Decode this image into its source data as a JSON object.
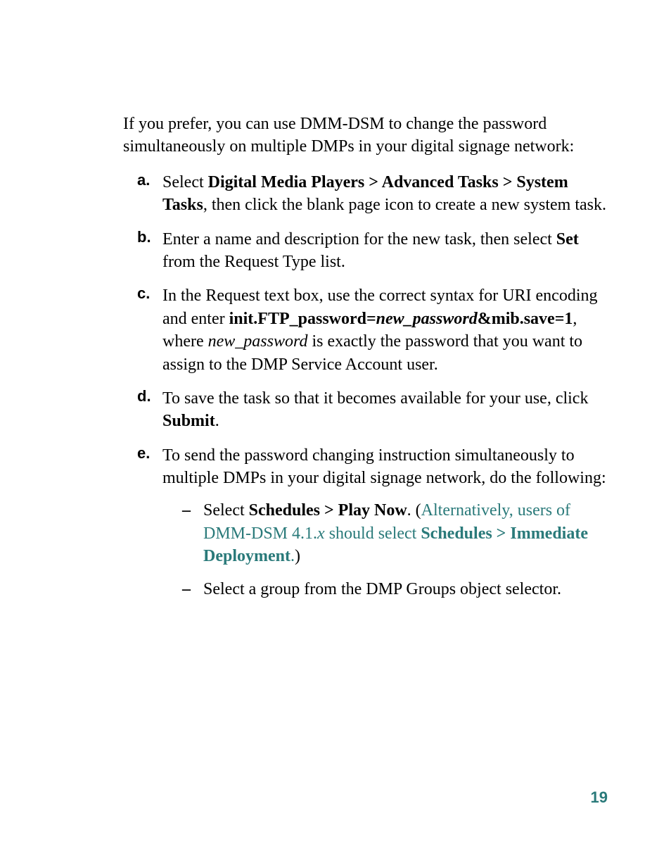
{
  "intro": "If you prefer, you can use DMM-DSM to change the password simultaneously on multiple DMPs in your digital signage network:",
  "items": {
    "a": {
      "marker": "a.",
      "pre": "Select ",
      "bold1": "Digital Media Players > Advanced Tasks > System Tasks",
      "post": ", then click the blank page icon to create a new system task."
    },
    "b": {
      "marker": "b.",
      "pre": "Enter a name and description for the new task, then select ",
      "bold1": "Set",
      "post": " from the Request Type list."
    },
    "c": {
      "marker": "c.",
      "line1": "In the Request text box, use the correct syntax for URI encoding and enter",
      "bold1": "init.FTP_password=",
      "italic1": "new_password",
      "bold2": "&mib.save=1",
      "post1": ", where ",
      "italic2": "new_password",
      "post2": " is exactly the password that you want to assign to the DMP Service Account user."
    },
    "d": {
      "marker": "d.",
      "pre": "To save the task so that it becomes available for your use, click ",
      "bold1": "Submit",
      "post": "."
    },
    "e": {
      "marker": "e.",
      "text": "To send the password changing instruction simultaneously to multiple DMPs in your digital signage network, do the following:",
      "sub1": {
        "marker": "–",
        "pre": "Select ",
        "bold1": "Schedules > Play Now",
        "post1": ". (",
        "teal1": "Alternatively, users of DMM-DSM 4.1.",
        "tealitalic": "x",
        "teal2": " should select ",
        "tealbold": "Schedules > Immediate Deployment",
        "teal3": ".",
        "close": ")"
      },
      "sub2": {
        "marker": "–",
        "text": "Select a group from the DMP Groups object selector."
      }
    }
  },
  "pageNumber": "19",
  "colors": {
    "teal": "#2a7a7a",
    "text": "#000000",
    "bg": "#ffffff"
  }
}
